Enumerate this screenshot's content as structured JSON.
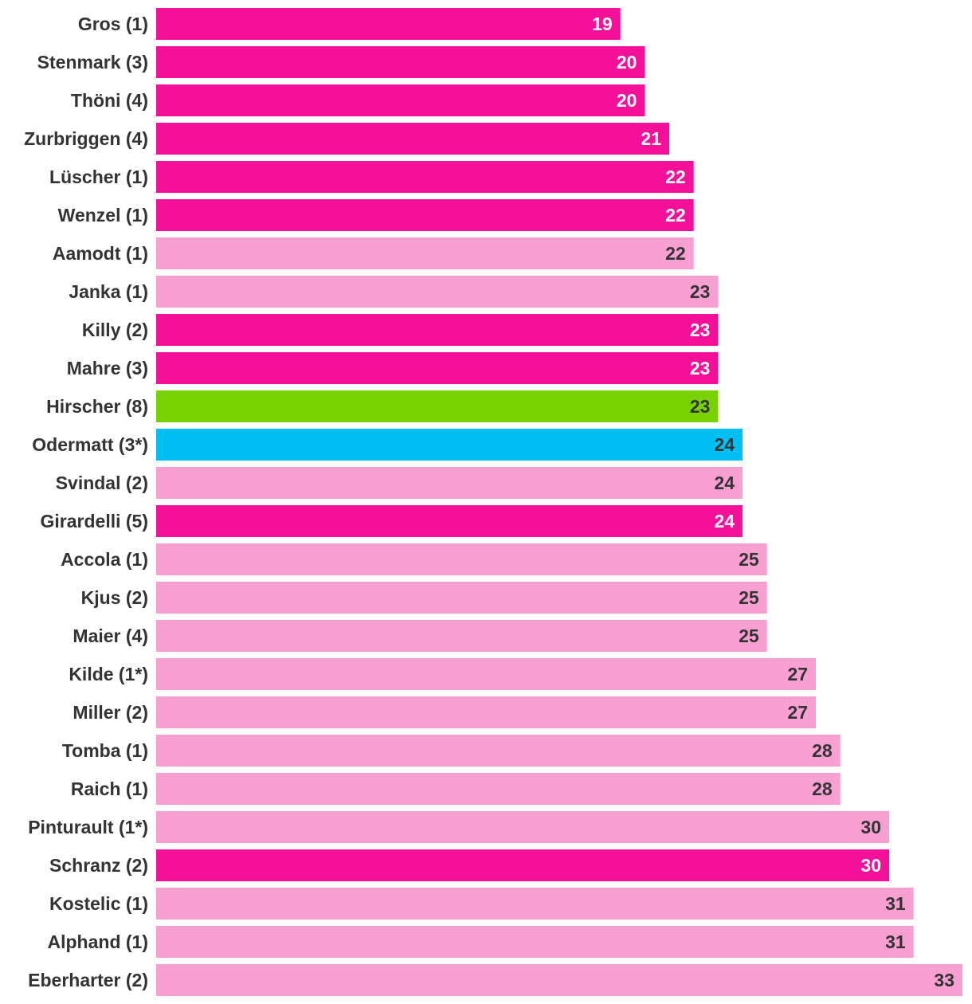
{
  "chart_data": {
    "type": "bar",
    "orientation": "horizontal",
    "title": "",
    "xlabel": "",
    "ylabel": "",
    "xlim": [
      0,
      33
    ],
    "grid": false,
    "legend": "none",
    "colors": {
      "dark_pink": "#f5109a",
      "light_pink": "#f9a0d2",
      "green": "#77d200",
      "blue": "#00bff2",
      "label_on_dark": "#ffffff",
      "label_on_light": "#333333"
    },
    "bars": [
      {
        "label": "Gros (1)",
        "value": 19,
        "color": "dark_pink"
      },
      {
        "label": "Stenmark (3)",
        "value": 20,
        "color": "dark_pink"
      },
      {
        "label": "Thöni (4)",
        "value": 20,
        "color": "dark_pink"
      },
      {
        "label": "Zurbriggen (4)",
        "value": 21,
        "color": "dark_pink"
      },
      {
        "label": "Lüscher (1)",
        "value": 22,
        "color": "dark_pink"
      },
      {
        "label": "Wenzel (1)",
        "value": 22,
        "color": "dark_pink"
      },
      {
        "label": "Aamodt (1)",
        "value": 22,
        "color": "light_pink"
      },
      {
        "label": "Janka (1)",
        "value": 23,
        "color": "light_pink"
      },
      {
        "label": "Killy (2)",
        "value": 23,
        "color": "dark_pink"
      },
      {
        "label": "Mahre (3)",
        "value": 23,
        "color": "dark_pink"
      },
      {
        "label": "Hirscher (8)",
        "value": 23,
        "color": "green"
      },
      {
        "label": "Odermatt (3*)",
        "value": 24,
        "color": "blue"
      },
      {
        "label": "Svindal (2)",
        "value": 24,
        "color": "light_pink"
      },
      {
        "label": "Girardelli (5)",
        "value": 24,
        "color": "dark_pink"
      },
      {
        "label": "Accola (1)",
        "value": 25,
        "color": "light_pink"
      },
      {
        "label": "Kjus (2)",
        "value": 25,
        "color": "light_pink"
      },
      {
        "label": "Maier (4)",
        "value": 25,
        "color": "light_pink"
      },
      {
        "label": "Kilde (1*)",
        "value": 27,
        "color": "light_pink"
      },
      {
        "label": "Miller (2)",
        "value": 27,
        "color": "light_pink"
      },
      {
        "label": "Tomba (1)",
        "value": 28,
        "color": "light_pink"
      },
      {
        "label": "Raich (1)",
        "value": 28,
        "color": "light_pink"
      },
      {
        "label": "Pinturault (1*)",
        "value": 30,
        "color": "light_pink"
      },
      {
        "label": "Schranz (2)",
        "value": 30,
        "color": "dark_pink"
      },
      {
        "label": "Kostelic (1)",
        "value": 31,
        "color": "light_pink"
      },
      {
        "label": "Alphand (1)",
        "value": 31,
        "color": "light_pink"
      },
      {
        "label": "Eberharter (2)",
        "value": 33,
        "color": "light_pink"
      }
    ]
  }
}
